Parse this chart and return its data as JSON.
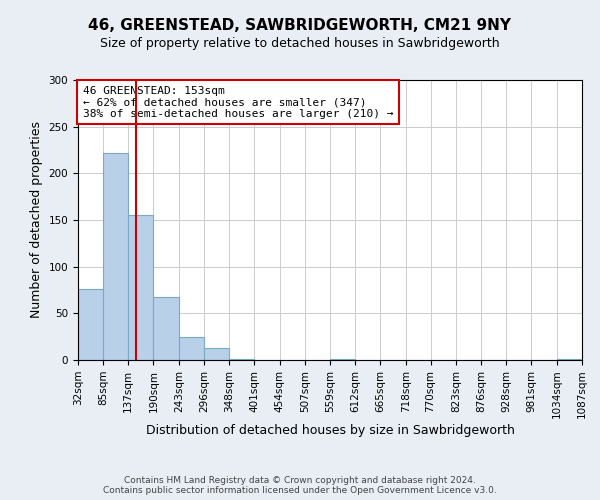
{
  "title": "46, GREENSTEAD, SAWBRIDGEWORTH, CM21 9NY",
  "subtitle": "Size of property relative to detached houses in Sawbridgeworth",
  "xlabel": "Distribution of detached houses by size in Sawbridgeworth",
  "ylabel": "Number of detached properties",
  "bin_edges": [
    32,
    85,
    137,
    190,
    243,
    296,
    348,
    401,
    454,
    507,
    559,
    612,
    665,
    718,
    770,
    823,
    876,
    928,
    981,
    1034,
    1087
  ],
  "bin_heights": [
    76,
    222,
    155,
    67,
    25,
    13,
    1,
    0,
    0,
    0,
    1,
    0,
    0,
    0,
    0,
    0,
    0,
    0,
    0,
    1
  ],
  "bar_color": "#b8d0e8",
  "bar_edge_color": "#7aaac8",
  "vline_x": 153,
  "vline_color": "#cc0000",
  "ylim": [
    0,
    300
  ],
  "yticks": [
    0,
    50,
    100,
    150,
    200,
    250,
    300
  ],
  "annotation_title": "46 GREENSTEAD: 153sqm",
  "annotation_line1": "← 62% of detached houses are smaller (347)",
  "annotation_line2": "38% of semi-detached houses are larger (210) →",
  "annotation_box_color": "#ffffff",
  "annotation_box_edge_color": "#cc0000",
  "footer_line1": "Contains HM Land Registry data © Crown copyright and database right 2024.",
  "footer_line2": "Contains public sector information licensed under the Open Government Licence v3.0.",
  "background_color": "#e8eef4",
  "plot_bg_color": "#ffffff",
  "title_fontsize": 11,
  "subtitle_fontsize": 9,
  "ylabel_fontsize": 9,
  "xlabel_fontsize": 9,
  "tick_fontsize": 7.5,
  "annotation_fontsize": 8,
  "footer_fontsize": 6.5
}
